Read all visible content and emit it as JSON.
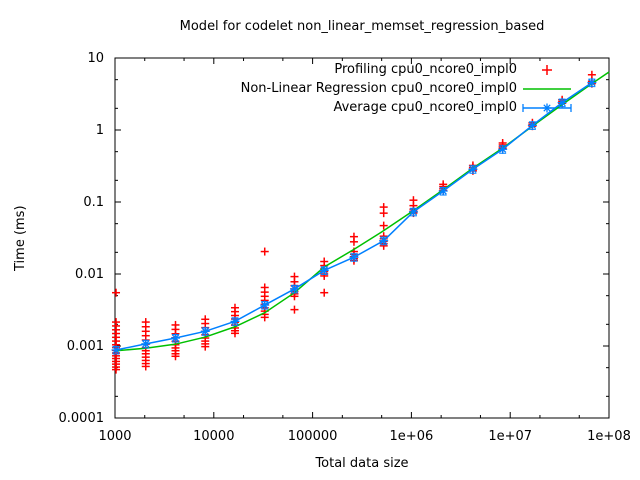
{
  "colors": {
    "profiling": "#ff0000",
    "regression": "#00c000",
    "average": "#0080ff",
    "axis": "#000000",
    "background": "#ffffff"
  },
  "chart_data": {
    "type": "line",
    "title": "Model for codelet non_linear_memset_regression_based",
    "xlabel": "Total data size",
    "ylabel": "Time (ms)",
    "x_scale": "log",
    "y_scale": "log",
    "xlim": [
      1000,
      100000000
    ],
    "ylim": [
      0.0001,
      10
    ],
    "grid": false,
    "x_ticks": {
      "values": [
        1000,
        10000,
        100000,
        1000000,
        10000000,
        100000000
      ],
      "labels": [
        "1000",
        "10000",
        "100000",
        "1e+06",
        "1e+07",
        "1e+08"
      ]
    },
    "y_ticks": {
      "values": [
        10,
        1,
        0.1,
        0.01,
        0.001,
        0.0001
      ],
      "labels": [
        "10",
        "1",
        "0.1",
        "0.01",
        "0.001",
        "0.0001"
      ]
    },
    "minor_tick_multipliers": [
      2,
      5
    ],
    "legend": {
      "position": "top-right-inside",
      "entries": [
        {
          "label": "Profiling cpu0_ncore0_impl0",
          "style": "points",
          "color": "#ff0000"
        },
        {
          "label": "Non-Linear Regression cpu0_ncore0_impl0",
          "style": "line",
          "color": "#00c000"
        },
        {
          "label": "Average cpu0_ncore0_impl0",
          "style": "errorbar-line",
          "color": "#0080ff"
        }
      ]
    },
    "series": [
      {
        "name": "Profiling cpu0_ncore0_impl0",
        "type": "scatter",
        "marker": "plus",
        "color": "#ff0000",
        "points": [
          {
            "x": 1024,
            "y": [
              0.0055,
              0.00215,
              0.0019,
              0.00168,
              0.00149,
              0.00132,
              0.00117,
              0.00104,
              0.00095,
              0.00087,
              0.0008,
              0.00073,
              0.00067,
              0.00061,
              0.00056,
              0.00051,
              0.00047
            ]
          },
          {
            "x": 2048,
            "y": [
              0.00215,
              0.00185,
              0.0016,
              0.00139,
              0.00121,
              0.00106,
              0.00095,
              0.00086,
              0.00078,
              0.0007,
              0.00063,
              0.00057,
              0.00052
            ]
          },
          {
            "x": 4096,
            "y": [
              0.00196,
              0.0017,
              0.00148,
              0.0013,
              0.00116,
              0.00104,
              0.00094,
              0.00086,
              0.00078,
              0.00072
            ]
          },
          {
            "x": 8192,
            "y": [
              0.00235,
              0.00205,
              0.0018,
              0.0016,
              0.00143,
              0.00129,
              0.00117,
              0.00107,
              0.00098
            ]
          },
          {
            "x": 16384,
            "y": [
              0.0034,
              0.003,
              0.00265,
              0.00237,
              0.00214,
              0.00195,
              0.00178,
              0.00163,
              0.0015
            ]
          },
          {
            "x": 32768,
            "y": [
              0.0205,
              0.0065,
              0.0056,
              0.0049,
              0.0043,
              0.0038,
              0.0034,
              0.00305,
              0.00275,
              0.0025
            ]
          },
          {
            "x": 65536,
            "y": [
              0.0092,
              0.0078,
              0.0069,
              0.0062,
              0.0057,
              0.0053,
              0.0049,
              0.0032
            ]
          },
          {
            "x": 131072,
            "y": [
              0.0149,
              0.0131,
              0.0118,
              0.0108,
              0.01,
              0.0094,
              0.0055
            ]
          },
          {
            "x": 262144,
            "y": [
              0.033,
              0.028,
              0.0205,
              0.0188,
              0.0174,
              0.0163,
              0.0153
            ]
          },
          {
            "x": 524288,
            "y": [
              0.085,
              0.07,
              0.047,
              0.0335,
              0.0308,
              0.0285,
              0.0264,
              0.0246
            ]
          },
          {
            "x": 1048576,
            "y": [
              0.106,
              0.089,
              0.0795,
              0.0745,
              0.0702
            ]
          },
          {
            "x": 2097152,
            "y": [
              0.176,
              0.164,
              0.153,
              0.144
            ]
          },
          {
            "x": 4194304,
            "y": [
              0.322,
              0.301,
              0.285,
              0.271
            ]
          },
          {
            "x": 8388608,
            "y": [
              0.66,
              0.62,
              0.585,
              0.556
            ]
          },
          {
            "x": 16777216,
            "y": [
              1.26,
              1.19,
              1.13
            ]
          },
          {
            "x": 33554432,
            "y": [
              2.63,
              2.48,
              2.35
            ]
          },
          {
            "x": 67108864,
            "y": [
              5.85,
              4.75,
              4.4
            ]
          }
        ]
      },
      {
        "name": "Non-Linear Regression cpu0_ncore0_impl0",
        "type": "line",
        "color": "#00c000",
        "x": [
          1000,
          1024,
          2048,
          4096,
          8192,
          16384,
          32768,
          65536,
          131072,
          262144,
          524288,
          1048576,
          2097152,
          4194304,
          8388608,
          16777216,
          33554432,
          67108864,
          100000000
        ],
        "y": [
          0.00085,
          0.00086,
          0.00093,
          0.00106,
          0.00133,
          0.00185,
          0.0029,
          0.0055,
          0.0125,
          0.022,
          0.04,
          0.076,
          0.148,
          0.295,
          0.56,
          1.13,
          2.25,
          4.4,
          6.4
        ]
      },
      {
        "name": "Average cpu0_ncore0_impl0",
        "type": "line-errorbars",
        "marker": "asterisk",
        "color": "#0080ff",
        "error_fraction": 0.12,
        "x": [
          1024,
          2048,
          4096,
          8192,
          16384,
          32768,
          65536,
          131072,
          262144,
          524288,
          1048576,
          2097152,
          4194304,
          8388608,
          16777216,
          33554432,
          67108864
        ],
        "y": [
          0.00088,
          0.00107,
          0.00129,
          0.0016,
          0.0022,
          0.0037,
          0.0062,
          0.0112,
          0.0171,
          0.029,
          0.073,
          0.142,
          0.285,
          0.54,
          1.16,
          2.4,
          4.55
        ]
      }
    ]
  }
}
